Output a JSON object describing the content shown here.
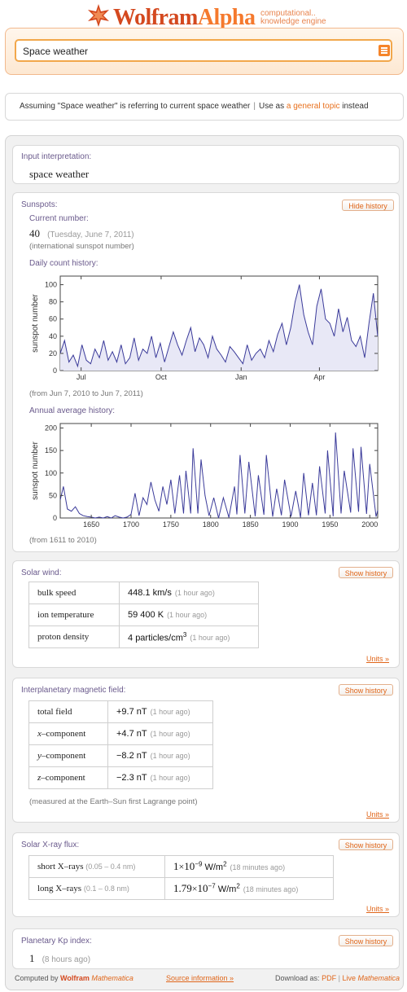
{
  "header": {
    "logo_wolfram": "Wolfram",
    "logo_alpha": "Alpha",
    "tagline_1": "computational..",
    "tagline_2": "knowledge engine",
    "search": {
      "value": "Space weather"
    }
  },
  "assumption": {
    "prefix": "Assuming \"Space weather\" is referring to current space weather",
    "separator": "|",
    "use_as": "Use as",
    "link": "a general topic",
    "suffix": "instead"
  },
  "input_interpretation": {
    "title": "Input interpretation:",
    "value": "space weather"
  },
  "sunspots": {
    "title": "Sunspots:",
    "hide_history": "Hide history",
    "current_label": "Current number:",
    "current_value": "40",
    "current_date": "(Tuesday, June 7, 2011)",
    "current_note": "(international sunspot number)",
    "daily_title": "Daily count history:",
    "daily_range": "(from Jun 7, 2010 to Jun 7, 2011)",
    "annual_title": "Annual average history:",
    "annual_range": "(from 1611 to 2010)"
  },
  "solar_wind": {
    "title": "Solar wind:",
    "show_history": "Show history",
    "units": "Units »",
    "rows": [
      {
        "label": "bulk speed",
        "value": "448.1",
        "unit": "km/s",
        "ago": "(1 hour ago)"
      },
      {
        "label": "ion temperature",
        "value": "59 400",
        "unit": "K",
        "ago": "(1 hour ago)"
      },
      {
        "label": "proton density",
        "value": "4",
        "unit": "particles/cm",
        "sup": "3",
        "ago": "(1 hour ago)"
      }
    ]
  },
  "imf": {
    "title": "Interplanetary magnetic field:",
    "show_history": "Show history",
    "units": "Units »",
    "note": "(measured at the Earth–Sun first Lagrange point)",
    "rows": [
      {
        "label": "total field",
        "value": "+9.7",
        "unit": "nT",
        "ago": "(1 hour ago)"
      },
      {
        "label_var": "x",
        "label": "–component",
        "value": "+4.7",
        "unit": "nT",
        "ago": "(1 hour ago)"
      },
      {
        "label_var": "y",
        "label": "–component",
        "value": "−8.2",
        "unit": "nT",
        "ago": "(1 hour ago)"
      },
      {
        "label_var": "z",
        "label": "–component",
        "value": "−2.3",
        "unit": "nT",
        "ago": "(1 hour ago)"
      }
    ]
  },
  "xray": {
    "title": "Solar X-ray flux:",
    "show_history": "Show history",
    "units": "Units »",
    "rows": [
      {
        "label": "short X–rays",
        "range": "(0.05 – 0.4 nm)",
        "mantissa": "1",
        "times": "×",
        "base": "10",
        "exp": "−9",
        "unit": "W/m",
        "unit_sup": "2",
        "ago": "(18 minutes ago)"
      },
      {
        "label": "long X–rays",
        "range": "(0.1 – 0.8 nm)",
        "mantissa": "1.79",
        "times": "×",
        "base": "10",
        "exp": "−7",
        "unit": "W/m",
        "unit_sup": "2",
        "ago": "(18 minutes ago)"
      }
    ]
  },
  "kp": {
    "title": "Planetary Kp index:",
    "show_history": "Show history",
    "value": "1",
    "ago": "(8 hours ago)"
  },
  "footer": {
    "computed_by": "Computed by",
    "wolfram": "Wolfram",
    "mathematica": "Mathematica",
    "source": "Source information »",
    "download_as": "Download as:",
    "pdf": "PDF",
    "sep": "|",
    "live": "Live",
    "live_math": "Mathematica"
  },
  "chart_data": [
    {
      "type": "area",
      "ylabel": "sunspot number",
      "xlim": [
        "2010-06-07",
        "2011-06-07"
      ],
      "ylim": [
        0,
        110
      ],
      "yticks": [
        0,
        20,
        40,
        60,
        80,
        100
      ],
      "xtick_labels": [
        "Jul",
        "Oct",
        "Jan",
        "Apr"
      ],
      "xtick_dates": [
        "2010-07-01",
        "2010-10-01",
        "2011-01-01",
        "2011-04-01"
      ],
      "color": "#3b3b9a",
      "fill": "#e8e8f6",
      "x": [
        "2010-06-07",
        "2010-06-12",
        "2010-06-17",
        "2010-06-22",
        "2010-06-27",
        "2010-07-02",
        "2010-07-07",
        "2010-07-12",
        "2010-07-17",
        "2010-07-22",
        "2010-07-27",
        "2010-08-01",
        "2010-08-06",
        "2010-08-11",
        "2010-08-16",
        "2010-08-21",
        "2010-08-26",
        "2010-08-31",
        "2010-09-05",
        "2010-09-10",
        "2010-09-15",
        "2010-09-20",
        "2010-09-25",
        "2010-09-30",
        "2010-10-05",
        "2010-10-10",
        "2010-10-15",
        "2010-10-20",
        "2010-10-25",
        "2010-10-30",
        "2010-11-04",
        "2010-11-09",
        "2010-11-14",
        "2010-11-19",
        "2010-11-24",
        "2010-11-29",
        "2010-12-04",
        "2010-12-09",
        "2010-12-14",
        "2010-12-19",
        "2010-12-24",
        "2010-12-29",
        "2011-01-03",
        "2011-01-08",
        "2011-01-13",
        "2011-01-18",
        "2011-01-23",
        "2011-01-28",
        "2011-02-02",
        "2011-02-07",
        "2011-02-12",
        "2011-02-17",
        "2011-02-22",
        "2011-02-27",
        "2011-03-04",
        "2011-03-09",
        "2011-03-14",
        "2011-03-19",
        "2011-03-24",
        "2011-03-29",
        "2011-04-03",
        "2011-04-08",
        "2011-04-13",
        "2011-04-18",
        "2011-04-23",
        "2011-04-28",
        "2011-05-03",
        "2011-05-08",
        "2011-05-13",
        "2011-05-18",
        "2011-05-23",
        "2011-05-28",
        "2011-06-02",
        "2011-06-07"
      ],
      "values": [
        20,
        35,
        10,
        18,
        5,
        30,
        12,
        8,
        25,
        15,
        35,
        12,
        22,
        10,
        30,
        8,
        15,
        38,
        12,
        25,
        20,
        40,
        15,
        32,
        10,
        28,
        45,
        30,
        18,
        35,
        50,
        22,
        38,
        30,
        15,
        40,
        25,
        18,
        10,
        28,
        22,
        15,
        8,
        30,
        12,
        20,
        25,
        15,
        35,
        22,
        42,
        55,
        30,
        50,
        80,
        100,
        65,
        45,
        30,
        75,
        95,
        60,
        55,
        40,
        72,
        45,
        62,
        35,
        28,
        40,
        15,
        55,
        90,
        40
      ]
    },
    {
      "type": "line",
      "ylabel": "sunspot number",
      "xlim": [
        1611,
        2010
      ],
      "ylim": [
        0,
        210
      ],
      "yticks": [
        0,
        50,
        100,
        150,
        200
      ],
      "xticks": [
        1650,
        1700,
        1750,
        1800,
        1850,
        1900,
        1950,
        2000
      ],
      "color": "#3b3b9a",
      "x": [
        1611,
        1615,
        1620,
        1625,
        1630,
        1635,
        1640,
        1645,
        1650,
        1655,
        1660,
        1665,
        1670,
        1675,
        1680,
        1685,
        1690,
        1695,
        1700,
        1705,
        1710,
        1715,
        1720,
        1725,
        1730,
        1735,
        1740,
        1745,
        1750,
        1755,
        1761,
        1766,
        1769,
        1775,
        1778,
        1784,
        1788,
        1793,
        1798,
        1804,
        1810,
        1816,
        1823,
        1830,
        1833,
        1837,
        1843,
        1848,
        1856,
        1860,
        1867,
        1870,
        1878,
        1883,
        1889,
        1893,
        1901,
        1907,
        1913,
        1917,
        1923,
        1928,
        1933,
        1937,
        1944,
        1947,
        1954,
        1957,
        1964,
        1968,
        1976,
        1979,
        1986,
        1989,
        1996,
        2000,
        2008,
        2010
      ],
      "values": [
        40,
        70,
        20,
        15,
        25,
        10,
        5,
        3,
        2,
        0,
        2,
        0,
        3,
        0,
        5,
        2,
        0,
        2,
        8,
        55,
        5,
        45,
        30,
        80,
        40,
        15,
        70,
        30,
        85,
        10,
        95,
        10,
        105,
        10,
        155,
        10,
        130,
        50,
        5,
        45,
        0,
        45,
        1,
        70,
        8,
        140,
        10,
        125,
        4,
        95,
        7,
        140,
        3,
        65,
        6,
        85,
        3,
        60,
        1,
        100,
        6,
        78,
        6,
        115,
        10,
        150,
        4,
        190,
        10,
        105,
        12,
        155,
        14,
        158,
        9,
        120,
        3,
        17
      ]
    }
  ]
}
